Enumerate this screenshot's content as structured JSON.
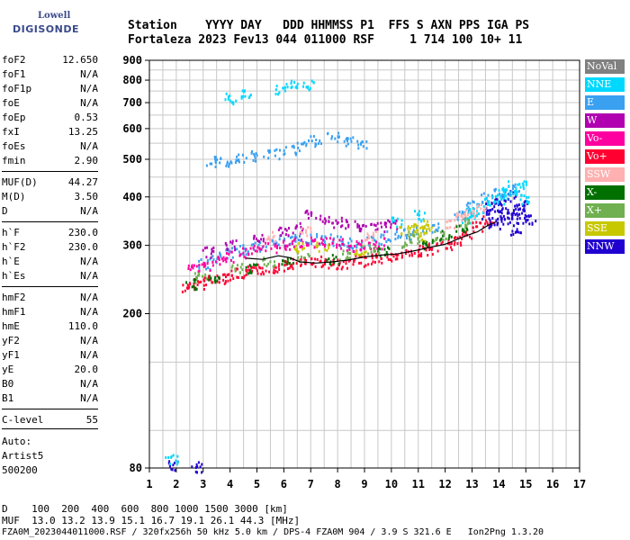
{
  "logo": {
    "line1": "Lowell",
    "line2": "DIGISONDE"
  },
  "header": {
    "row1": "Station    YYYY DAY   DDD HHMMSS P1  FFS S AXN PPS IGA PS",
    "row2": "Fortaleza 2023 Fev13 044 011000 RSF     1 714 100 10+ 11"
  },
  "params": [
    {
      "k": "foF2",
      "v": "12.650"
    },
    {
      "k": "foF1",
      "v": "N/A"
    },
    {
      "k": "foF1p",
      "v": "N/A"
    },
    {
      "k": "foE",
      "v": "N/A"
    },
    {
      "k": "foEp",
      "v": "0.53"
    },
    {
      "k": "fxI",
      "v": "13.25"
    },
    {
      "k": "foEs",
      "v": "N/A"
    },
    {
      "k": "fmin",
      "v": "2.90"
    },
    {
      "k": "MUF(D)",
      "v": "44.27"
    },
    {
      "k": "M(D)",
      "v": "3.50"
    },
    {
      "k": "D",
      "v": "N/A"
    },
    {
      "k": "h`F",
      "v": "230.0"
    },
    {
      "k": "h`F2",
      "v": "230.0"
    },
    {
      "k": "h`E",
      "v": "N/A"
    },
    {
      "k": "h`Es",
      "v": "N/A"
    },
    {
      "k": "hmF2",
      "v": "N/A"
    },
    {
      "k": "hmF1",
      "v": "N/A"
    },
    {
      "k": "hmE",
      "v": "110.0"
    },
    {
      "k": "yF2",
      "v": "N/A"
    },
    {
      "k": "yF1",
      "v": "N/A"
    },
    {
      "k": "yE",
      "v": "20.0"
    },
    {
      "k": "B0",
      "v": "N/A"
    },
    {
      "k": "B1",
      "v": "N/A"
    },
    {
      "k": "C-level",
      "v": "55"
    }
  ],
  "auto": {
    "label": "Auto:",
    "name": "Artist5",
    "code": "500200"
  },
  "footer": {
    "line1": "D    100  200  400  600  800 1000 1500 3000 [km]",
    "line2": "MUF  13.0 13.2 13.9 15.1 16.7 19.1 26.1 44.3 [MHz]",
    "line3": "FZA0M_2023044011000.RSF / 320fx256h 50 kHz 5.0 km / DPS-4 FZA0M 904 / 3.9 S 321.6 E   Ion2Png 1.3.20"
  },
  "legend": [
    {
      "label": "NoVal",
      "color": "#808080"
    },
    {
      "label": "NNE",
      "color": "#00d8ff"
    },
    {
      "label": "E",
      "color": "#3aa0f0"
    },
    {
      "label": "W",
      "color": "#b000b0"
    },
    {
      "label": "Vo-",
      "color": "#ff00a0"
    },
    {
      "label": "Vo+",
      "color": "#ff0030"
    },
    {
      "label": "SSW",
      "color": "#ffb0b0"
    },
    {
      "label": "X-",
      "color": "#007000"
    },
    {
      "label": "X+",
      "color": "#70b050"
    },
    {
      "label": "SSE",
      "color": "#c8c800"
    },
    {
      "label": "NNW",
      "color": "#2000d0"
    }
  ],
  "chart_data": {
    "type": "scatter",
    "xlabel": "",
    "ylabel": "",
    "xlim": [
      1,
      17
    ],
    "ylim": [
      80,
      900
    ],
    "x_ticks": [
      "1",
      "2",
      "3",
      "4",
      "5",
      "6",
      "7",
      "8",
      "9",
      "10",
      "11",
      "12",
      "13",
      "14",
      "15",
      "16",
      "17"
    ],
    "y_ticks": [
      "80",
      "200",
      "300",
      "400",
      "500",
      "600",
      "700",
      "800",
      "900"
    ],
    "y_scale": "log",
    "grid": true,
    "series": [
      {
        "name": "Vo+",
        "color": "#ff0030",
        "points": [
          [
            2.4,
            235
          ],
          [
            2.8,
            240
          ],
          [
            3.2,
            245
          ],
          [
            3.6,
            248
          ],
          [
            4.0,
            252
          ],
          [
            4.4,
            255
          ],
          [
            4.8,
            258
          ],
          [
            5.2,
            262
          ],
          [
            5.6,
            265
          ],
          [
            6.0,
            268
          ],
          [
            6.4,
            270
          ],
          [
            6.8,
            272
          ],
          [
            7.2,
            274
          ],
          [
            7.6,
            272
          ],
          [
            8.0,
            270
          ],
          [
            8.4,
            272
          ],
          [
            8.8,
            275
          ],
          [
            9.2,
            278
          ],
          [
            9.6,
            280
          ],
          [
            10.0,
            282
          ],
          [
            10.4,
            285
          ],
          [
            10.8,
            290
          ],
          [
            11.2,
            292
          ],
          [
            11.6,
            296
          ],
          [
            12.0,
            302
          ],
          [
            12.4,
            312
          ],
          [
            12.8,
            320
          ],
          [
            13.2,
            338
          ],
          [
            13.6,
            350
          ]
        ]
      },
      {
        "name": "E",
        "color": "#3aa0f0",
        "points": [
          [
            3.0,
            270
          ],
          [
            3.5,
            280
          ],
          [
            4.0,
            288
          ],
          [
            4.5,
            295
          ],
          [
            5.0,
            300
          ],
          [
            5.5,
            305
          ],
          [
            6.0,
            310
          ],
          [
            6.5,
            312
          ],
          [
            7.0,
            315
          ],
          [
            7.5,
            312
          ],
          [
            8.0,
            310
          ],
          [
            8.5,
            305
          ],
          [
            9.0,
            308
          ],
          [
            9.5,
            312
          ],
          [
            10.0,
            318
          ],
          [
            10.5,
            322
          ],
          [
            11.0,
            330
          ],
          [
            11.5,
            335
          ],
          [
            12.5,
            360
          ],
          [
            13.0,
            380
          ],
          [
            13.5,
            400
          ],
          [
            14.0,
            410
          ],
          [
            14.5,
            420
          ],
          [
            3.3,
            495
          ],
          [
            3.8,
            498
          ],
          [
            4.4,
            505
          ],
          [
            5.0,
            512
          ],
          [
            5.6,
            520
          ],
          [
            6.2,
            530
          ],
          [
            6.7,
            545
          ],
          [
            7.2,
            560
          ],
          [
            7.8,
            570
          ],
          [
            8.4,
            560
          ],
          [
            8.9,
            555
          ]
        ]
      },
      {
        "name": "Vo-",
        "color": "#ff00a0",
        "points": [
          [
            2.6,
            262
          ],
          [
            3.0,
            268
          ],
          [
            3.5,
            275
          ],
          [
            4.0,
            282
          ],
          [
            4.5,
            288
          ],
          [
            5.0,
            292
          ],
          [
            5.5,
            298
          ],
          [
            6.0,
            302
          ],
          [
            6.5,
            305
          ],
          [
            7.0,
            308
          ],
          [
            7.5,
            306
          ],
          [
            8.0,
            304
          ],
          [
            8.5,
            300
          ],
          [
            9.0,
            302
          ],
          [
            9.5,
            305
          ]
        ]
      },
      {
        "name": "W",
        "color": "#b000b0",
        "points": [
          [
            3.2,
            290
          ],
          [
            4.0,
            302
          ],
          [
            5.0,
            318
          ],
          [
            6.0,
            325
          ],
          [
            6.5,
            335
          ],
          [
            7.0,
            360
          ],
          [
            7.5,
            355
          ],
          [
            8.0,
            345
          ],
          [
            8.5,
            340
          ],
          [
            9.0,
            338
          ],
          [
            9.5,
            335
          ],
          [
            10.0,
            340
          ]
        ]
      },
      {
        "name": "NNW",
        "color": "#2000d0",
        "points": [
          [
            13.5,
            360
          ],
          [
            13.7,
            380
          ],
          [
            13.9,
            370
          ],
          [
            14.1,
            350
          ],
          [
            14.3,
            365
          ],
          [
            14.5,
            355
          ],
          [
            14.7,
            372
          ],
          [
            14.9,
            362
          ],
          [
            15.1,
            350
          ],
          [
            14.0,
            395
          ],
          [
            14.4,
            405
          ],
          [
            14.8,
            385
          ],
          [
            13.8,
            340
          ],
          [
            14.6,
            330
          ],
          [
            1.9,
            82
          ],
          [
            2.7,
            81
          ]
        ]
      },
      {
        "name": "NNE",
        "color": "#00d8ff",
        "points": [
          [
            12.8,
            355
          ],
          [
            13.0,
            365
          ],
          [
            13.2,
            372
          ],
          [
            13.6,
            392
          ],
          [
            14.0,
            398
          ],
          [
            14.2,
            410
          ],
          [
            14.6,
            418
          ],
          [
            15.0,
            395
          ],
          [
            14.8,
            435
          ],
          [
            14.3,
            430
          ],
          [
            11.0,
            360
          ],
          [
            10.2,
            345
          ],
          [
            1.8,
            85
          ],
          [
            4.0,
            720
          ],
          [
            4.6,
            735
          ],
          [
            5.9,
            760
          ],
          [
            6.3,
            790
          ],
          [
            6.9,
            785
          ]
        ]
      },
      {
        "name": "SSW",
        "color": "#ffb0b0",
        "points": [
          [
            12.2,
            340
          ],
          [
            12.5,
            355
          ],
          [
            12.9,
            365
          ],
          [
            13.3,
            375
          ],
          [
            5.5,
            318
          ],
          [
            6.8,
            330
          ],
          [
            9.2,
            320
          ]
        ]
      },
      {
        "name": "X-",
        "color": "#007000",
        "points": [
          [
            2.5,
            240
          ],
          [
            3.4,
            250
          ],
          [
            4.8,
            262
          ],
          [
            6.1,
            275
          ],
          [
            7.8,
            278
          ],
          [
            9.7,
            290
          ],
          [
            11.3,
            305
          ],
          [
            12.6,
            330
          ],
          [
            12.0,
            320
          ]
        ]
      },
      {
        "name": "X+",
        "color": "#70b050",
        "points": [
          [
            2.9,
            250
          ],
          [
            4.2,
            262
          ],
          [
            5.4,
            272
          ],
          [
            6.7,
            280
          ],
          [
            8.2,
            285
          ],
          [
            9.3,
            295
          ],
          [
            10.6,
            305
          ],
          [
            11.8,
            318
          ],
          [
            12.7,
            345
          ],
          [
            10.8,
            315
          ]
        ]
      },
      {
        "name": "SSE",
        "color": "#c8c800",
        "points": [
          [
            10.5,
            330
          ],
          [
            11.0,
            335
          ],
          [
            11.4,
            340
          ],
          [
            6.6,
            300
          ],
          [
            7.4,
            298
          ],
          [
            8.8,
            292
          ],
          [
            11.1,
            320
          ]
        ]
      }
    ],
    "trace": {
      "color": "#000000",
      "points": [
        [
          4.6,
          278
        ],
        [
          5.2,
          276
        ],
        [
          5.8,
          282
        ],
        [
          6.2,
          279
        ],
        [
          6.6,
          272
        ],
        [
          7.2,
          270
        ],
        [
          7.8,
          272
        ],
        [
          8.4,
          275
        ],
        [
          9.0,
          280
        ],
        [
          9.6,
          283
        ],
        [
          10.2,
          285
        ],
        [
          10.8,
          290
        ],
        [
          11.4,
          296
        ],
        [
          12.0,
          302
        ],
        [
          12.4,
          310
        ],
        [
          12.8,
          318
        ],
        [
          13.2,
          325
        ],
        [
          13.6,
          338
        ],
        [
          13.9,
          345
        ]
      ]
    }
  }
}
